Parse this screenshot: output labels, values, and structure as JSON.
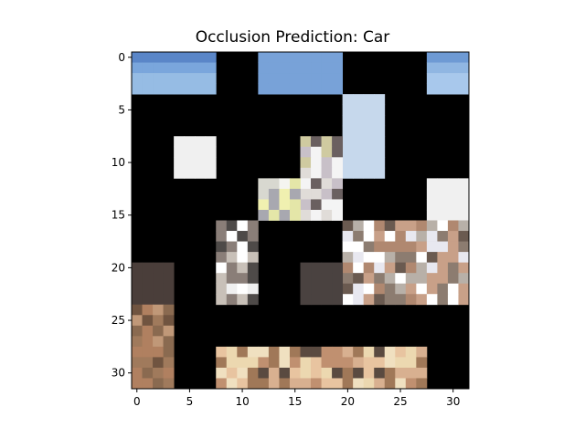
{
  "chart_data": {
    "type": "heatmap",
    "title": "Occlusion Prediction: Car",
    "xlabel": "",
    "ylabel": "",
    "xlim": [
      -0.5,
      31.5
    ],
    "ylim": [
      31.5,
      -0.5
    ],
    "x_ticks": [
      0,
      5,
      10,
      15,
      20,
      25,
      30
    ],
    "y_ticks": [
      0,
      5,
      10,
      15,
      20,
      25,
      30
    ],
    "grid": false,
    "size": [
      32,
      32
    ],
    "background_color": "#000000",
    "visible_patches": [
      {
        "rows": [
          0,
          3
        ],
        "cols": [
          0,
          7
        ],
        "fill": "sky",
        "colors": [
          "#5a86c8",
          "#7aa6dc",
          "#96bce4"
        ]
      },
      {
        "rows": [
          0,
          3
        ],
        "cols": [
          12,
          19
        ],
        "fill": "sky_mixed",
        "colors": [
          "#78a2d8",
          "#a8c6e8",
          "#d4d8e0",
          "#8a8e96"
        ]
      },
      {
        "rows": [
          0,
          3
        ],
        "cols": [
          28,
          31
        ],
        "fill": "sky",
        "colors": [
          "#6e9ad4",
          "#90b6e2",
          "#a8c8ec"
        ]
      },
      {
        "rows": [
          4,
          11
        ],
        "cols": [
          20,
          23
        ],
        "fill": "light",
        "colors": [
          "#c6d8ec",
          "#d8d8d8",
          "#b8b0a8",
          "#e8e4e0"
        ]
      },
      {
        "rows": [
          8,
          11
        ],
        "cols": [
          4,
          7
        ],
        "fill": "light",
        "colors": [
          "#f0f0f0",
          "#d0ccc8",
          "#8a8680",
          "#e8e8e8"
        ]
      },
      {
        "rows": [
          8,
          15
        ],
        "cols": [
          16,
          19
        ],
        "fill": "light",
        "colors": [
          "#f4f4f4",
          "#c8c0c8",
          "#6a6060",
          "#e0dcd8",
          "#cfcaa0"
        ]
      },
      {
        "rows": [
          12,
          15
        ],
        "cols": [
          12,
          15
        ],
        "fill": "yellow",
        "colors": [
          "#f0f0b0",
          "#e4e6a8",
          "#d8d8d0",
          "#f4f4f0",
          "#a8a8b0"
        ]
      },
      {
        "rows": [
          12,
          15
        ],
        "cols": [
          28,
          31
        ],
        "fill": "light",
        "colors": [
          "#f0f0f0",
          "#c8c8c8",
          "#6e6e6e",
          "#e0e0e0"
        ]
      },
      {
        "rows": [
          16,
          23
        ],
        "cols": [
          8,
          11
        ],
        "fill": "gray",
        "colors": [
          "#f0f0f0",
          "#8a7e78",
          "#4e4a48",
          "#c8c0b8",
          "#ffffff"
        ]
      },
      {
        "rows": [
          16,
          23
        ],
        "cols": [
          20,
          31
        ],
        "fill": "car",
        "colors": [
          "#ffffff",
          "#e8e8f0",
          "#b8b0a8",
          "#8c7c70",
          "#c8a088",
          "#b08870",
          "#6a5a50"
        ]
      },
      {
        "rows": [
          20,
          23
        ],
        "cols": [
          16,
          19
        ],
        "fill": "dark",
        "colors": [
          "#4a4240",
          "#5e5450",
          "#3a3432",
          "#6a6058"
        ]
      },
      {
        "rows": [
          20,
          23
        ],
        "cols": [
          0,
          3
        ],
        "fill": "dark",
        "colors": [
          "#4a3e3a",
          "#6a5a52",
          "#2e2a28",
          "#8a7060"
        ]
      },
      {
        "rows": [
          24,
          31
        ],
        "cols": [
          0,
          3
        ],
        "fill": "brown",
        "colors": [
          "#8a6a50",
          "#a07a5c",
          "#705440",
          "#c09878",
          "#b08060"
        ]
      },
      {
        "rows": [
          28,
          31
        ],
        "cols": [
          8,
          27
        ],
        "fill": "road",
        "colors": [
          "#e8c4a0",
          "#d8b090",
          "#f0e0c0",
          "#c09070",
          "#a07858",
          "#5a4a40",
          "#ecd8b0"
        ]
      }
    ]
  }
}
